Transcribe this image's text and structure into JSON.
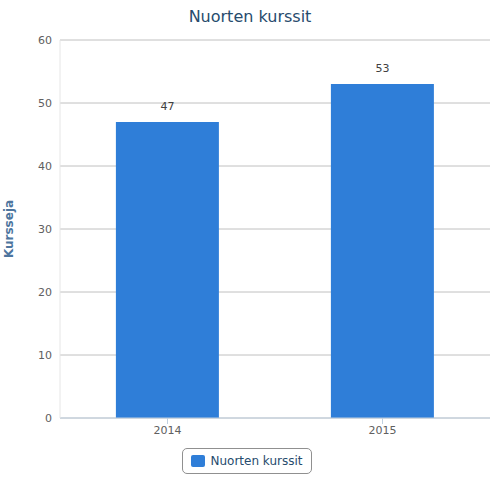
{
  "chart_data": {
    "type": "bar",
    "title": "Nuorten kurssit",
    "y_label": "Kursseja",
    "categories": [
      "2014",
      "2015"
    ],
    "series": [
      {
        "name": "Nuorten kurssit",
        "color": "#2f7ed8",
        "values": [
          47,
          53
        ]
      }
    ],
    "ylim": [
      0,
      60
    ],
    "yticks": [
      0,
      10,
      20,
      30,
      40,
      50,
      60
    ],
    "grid": true,
    "data_labels": true,
    "legend": "bottom"
  }
}
